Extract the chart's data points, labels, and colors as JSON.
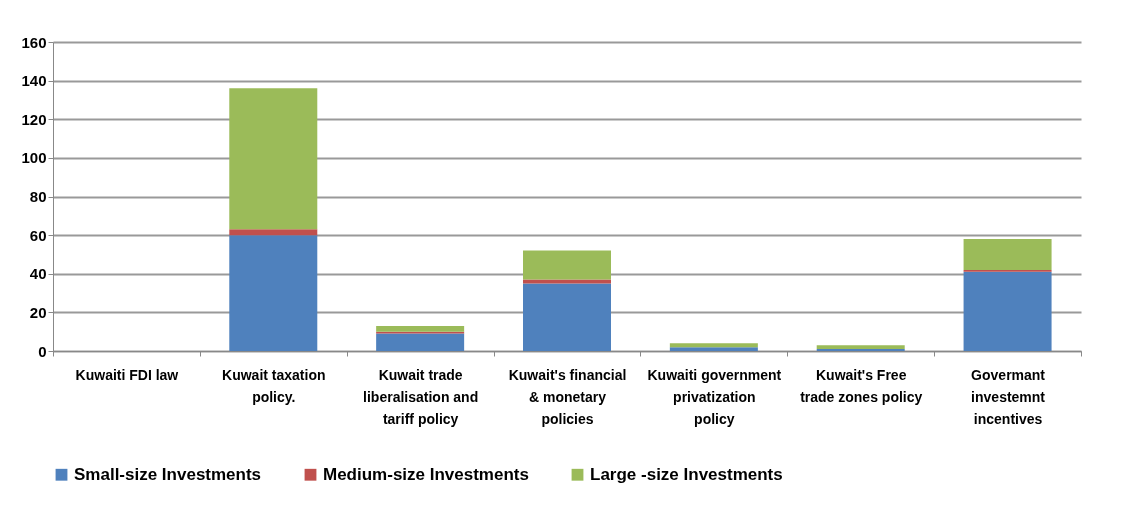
{
  "chart_data": {
    "type": "bar",
    "stacked": true,
    "categories": [
      "Kuwaiti FDI  law",
      "Kuwait taxation policy.",
      "Kuwait trade liberalisation and tariff policy",
      "Kuwait's financial & monetary policies",
      "Kuwaiti government privatization policy",
      "Kuwait's Free trade zones policy",
      "Govermant investemnt incentives"
    ],
    "series": [
      {
        "name": "Small-size Investments",
        "color": "#4f81bd",
        "values": [
          0,
          60,
          9,
          35,
          2,
          1,
          41
        ]
      },
      {
        "name": "Medium-size Investments",
        "color": "#c0504d",
        "values": [
          0,
          3,
          1,
          2,
          0,
          0,
          1
        ]
      },
      {
        "name": "Large -size Investments",
        "color": "#9bbb59",
        "values": [
          0,
          73,
          3,
          15,
          2,
          2,
          16
        ]
      }
    ],
    "ylim": [
      0,
      160
    ],
    "yticks": [
      0,
      20,
      40,
      60,
      80,
      100,
      120,
      140,
      160
    ],
    "grid": "y",
    "legend": "bottom"
  }
}
